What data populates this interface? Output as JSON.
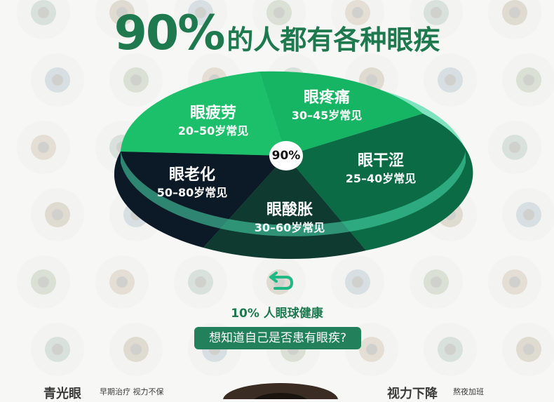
{
  "title": {
    "number": "90%",
    "text": "的人都有各种眼疾"
  },
  "pie": {
    "center_label": "90%",
    "colors": {
      "dark_green": "#0b6b44",
      "mid_green": "#12a35a",
      "light_green": "#1cc06a",
      "navy": "#0b1a26",
      "teal": "#2b5e50",
      "rim": "#2fd6a0"
    },
    "slices": [
      {
        "name": "眼疲劳",
        "age": "20–50岁常见"
      },
      {
        "name": "眼疼痛",
        "age": "30–45岁常见"
      },
      {
        "name": "眼干涩",
        "age": "25–40岁常见"
      },
      {
        "name": "眼酸胀",
        "age": "30–60岁常见"
      },
      {
        "name": "眼老化",
        "age": "50–80岁常见"
      }
    ]
  },
  "healthy_text": "10% 人眼球健康",
  "ask_button": "想知道自己是否患有眼疾?",
  "bottom": {
    "left_text": "青光眼",
    "left_small": "早期治疗 视力不保",
    "right_text": "视力下降",
    "right_small": "熬夜加班"
  }
}
